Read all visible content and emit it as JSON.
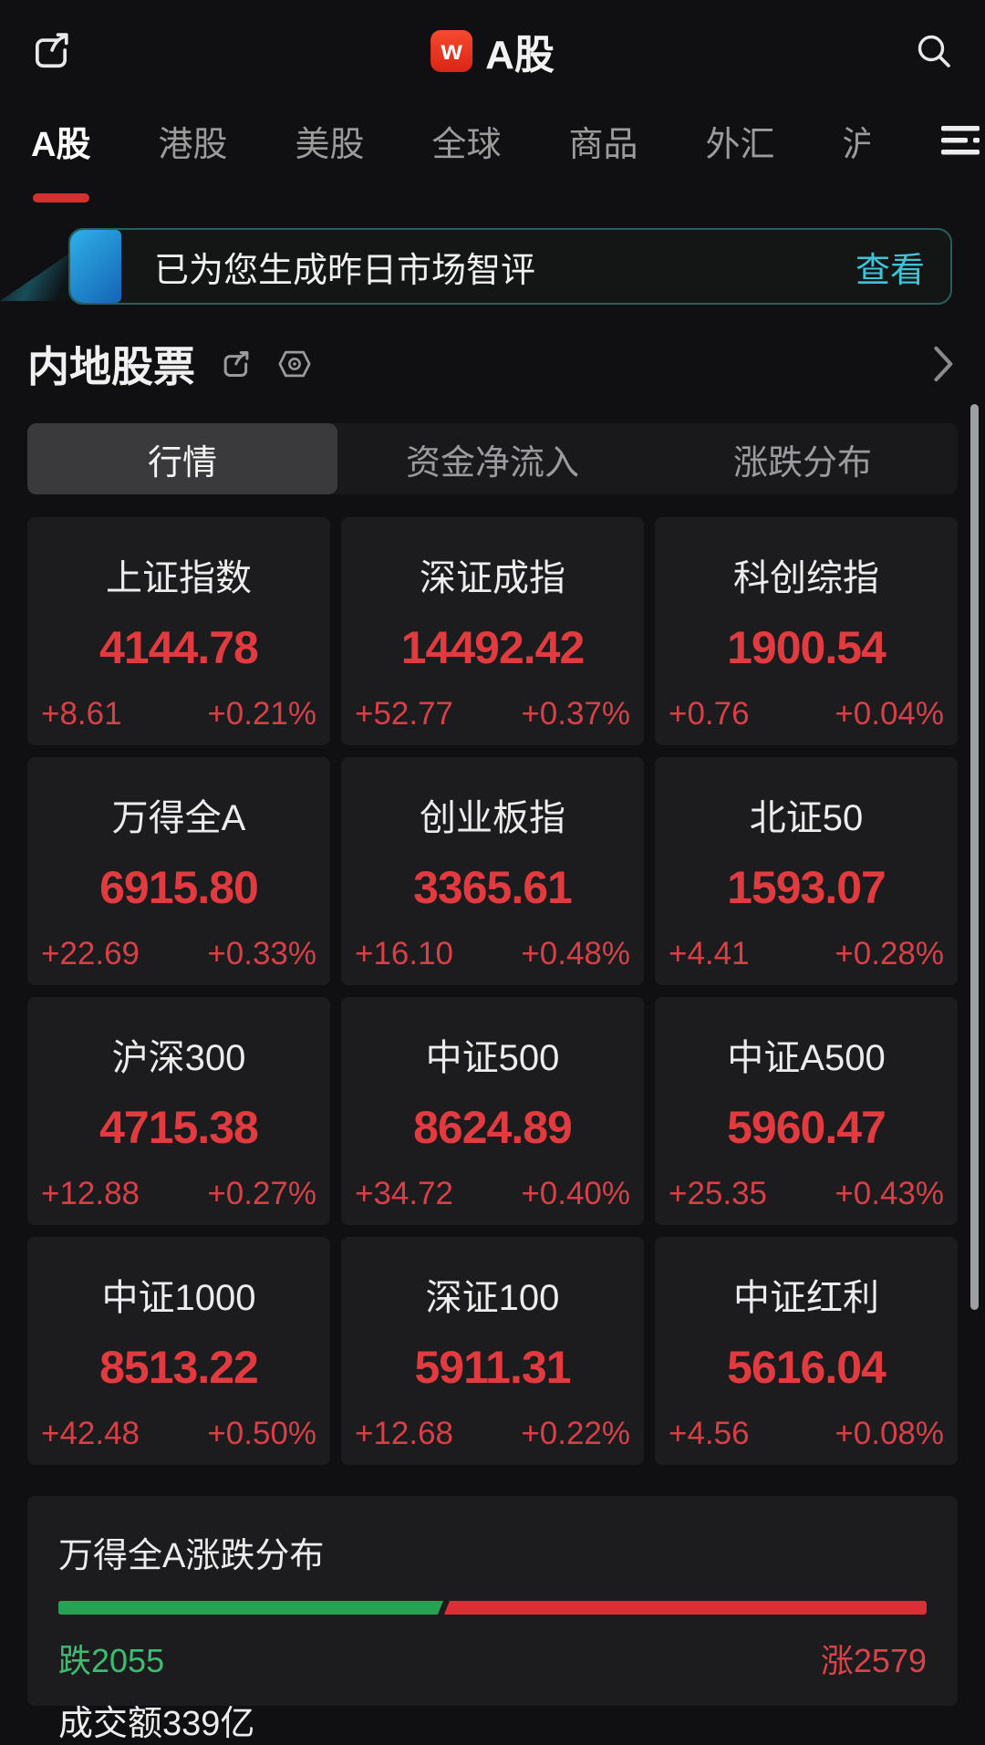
{
  "header": {
    "title": "A股",
    "logo_text": "w",
    "left_icon": "share-icon",
    "right_icon": "search-icon"
  },
  "nav": {
    "tabs": [
      {
        "label": "A股",
        "active": true
      },
      {
        "label": "港股",
        "active": false
      },
      {
        "label": "美股",
        "active": false
      },
      {
        "label": "全球",
        "active": false
      },
      {
        "label": "商品",
        "active": false
      },
      {
        "label": "外汇",
        "active": false
      },
      {
        "label": "沪",
        "active": false,
        "clipped": true
      }
    ],
    "menu_icon": "menu-icon"
  },
  "banner": {
    "message": "已为您生成昨日市场智评",
    "action_label": "查看"
  },
  "section": {
    "title": "内地股票",
    "icons": [
      "share-icon",
      "hexagon-target-icon",
      "chevron-right-icon"
    ]
  },
  "view_tabs": [
    {
      "label": "行情",
      "active": true
    },
    {
      "label": "资金净流入",
      "active": false
    },
    {
      "label": "涨跌分布",
      "active": false
    }
  ],
  "indices": [
    {
      "name": "上证指数",
      "value": "4144.78",
      "change": "+8.61",
      "pct": "+0.21%"
    },
    {
      "name": "深证成指",
      "value": "14492.42",
      "change": "+52.77",
      "pct": "+0.37%"
    },
    {
      "name": "科创综指",
      "value": "1900.54",
      "change": "+0.76",
      "pct": "+0.04%"
    },
    {
      "name": "万得全A",
      "value": "6915.80",
      "change": "+22.69",
      "pct": "+0.33%"
    },
    {
      "name": "创业板指",
      "value": "3365.61",
      "change": "+16.10",
      "pct": "+0.48%"
    },
    {
      "name": "北证50",
      "value": "1593.07",
      "change": "+4.41",
      "pct": "+0.28%"
    },
    {
      "name": "沪深300",
      "value": "4715.38",
      "change": "+12.88",
      "pct": "+0.27%"
    },
    {
      "name": "中证500",
      "value": "8624.89",
      "change": "+34.72",
      "pct": "+0.40%"
    },
    {
      "name": "中证A500",
      "value": "5960.47",
      "change": "+25.35",
      "pct": "+0.43%"
    },
    {
      "name": "中证1000",
      "value": "8513.22",
      "change": "+42.48",
      "pct": "+0.50%"
    },
    {
      "name": "深证100",
      "value": "5911.31",
      "change": "+12.68",
      "pct": "+0.22%"
    },
    {
      "name": "中证红利",
      "value": "5616.04",
      "change": "+4.56",
      "pct": "+0.08%"
    }
  ],
  "distribution": {
    "title": "万得全A涨跌分布",
    "down_count": 2055,
    "up_count": 2579,
    "down_label": "跌2055",
    "up_label": "涨2579",
    "turnover": "成交额339亿"
  },
  "colors": {
    "up_red": "#e13b40",
    "down_green": "#27a254",
    "accent_cyan": "#3fc3d8",
    "brand_red": "#e8432d",
    "tab_underline": "#d43030"
  }
}
